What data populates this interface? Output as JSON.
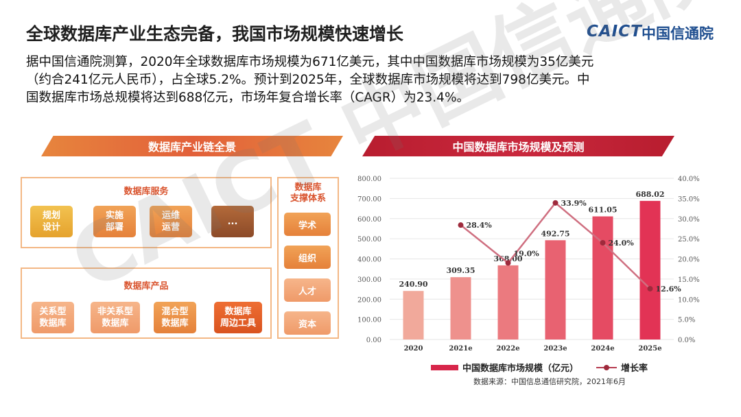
{
  "header": {
    "title": "全球数据库产业生态完备，我国市场规模快速增长",
    "logo_en": "CAICT",
    "logo_cn": "中国信通院"
  },
  "intro": [
    "据中国信通院测算，2020年全球数据库市场规模为671亿美元，其中中国数据库市场规模为35亿美元",
    "（约合241亿元人民币），占全球5.2%。预计到2025年，全球数据库市场规模将达到798亿美元。中",
    "国数据库市场总规模将达到688亿元，市场年复合增长率（CAGR）为23.4%。"
  ],
  "left_banner": "数据库产业链全景",
  "right_banner": "中国数据库市场规模及预测",
  "services": {
    "title": "数据库服务",
    "items": [
      "规划\n设计",
      "实施\n部署",
      "运维\n运营",
      "..."
    ]
  },
  "products": {
    "title": "数据库产品",
    "items": [
      "关系型\n数据库",
      "非关系型\n数据库",
      "混合型\n数据库",
      "数据库\n周边工具"
    ]
  },
  "support": {
    "title": "数据库\n支撑体系",
    "items": [
      "学术",
      "组织",
      "人才",
      "资本"
    ]
  },
  "watermark": "CAICT 中国信通院",
  "colors": {
    "bar_light": "#f1a99b",
    "bar_dark": "#e23355",
    "line": "#c9566a",
    "marker": "#9e2a3c"
  },
  "chart_data": {
    "type": "bar",
    "categories": [
      "2020",
      "2021e",
      "2022e",
      "2023e",
      "2024e",
      "2025e"
    ],
    "series": [
      {
        "name": "中国数据库市场规模（亿元）",
        "type": "bar",
        "axis": "left",
        "values": [
          240.9,
          309.35,
          368.0,
          492.75,
          611.05,
          688.02
        ],
        "labels": [
          "240.90",
          "309.35",
          "368.00",
          "492.75",
          "611.05",
          "688.02"
        ]
      },
      {
        "name": "增长率",
        "type": "line",
        "axis": "right",
        "x": [
          "2021e",
          "2022e",
          "2023e",
          "2024e",
          "2025e"
        ],
        "values": [
          28.4,
          19.0,
          33.9,
          24.0,
          12.6
        ],
        "labels": [
          "28.4%",
          "19.0%",
          "33.9%",
          "24.0%",
          "12.6%"
        ]
      }
    ],
    "left_axis": {
      "min": 0,
      "max": 800,
      "ticks": [
        "0.00",
        "100.00",
        "200.00",
        "300.00",
        "400.00",
        "500.00",
        "600.00",
        "700.00",
        "800.00"
      ]
    },
    "right_axis": {
      "min": 0,
      "max": 40,
      "ticks": [
        "0.0%",
        "5.0%",
        "10.0%",
        "15.0%",
        "20.0%",
        "25.0%",
        "30.0%",
        "35.0%",
        "40.0%"
      ]
    },
    "legend_position": "bottom",
    "source": "数据来源：中国信息通信研究院，2021年6月"
  }
}
